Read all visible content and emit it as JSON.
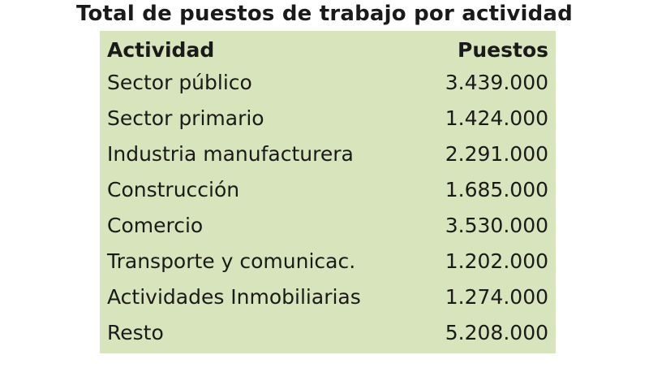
{
  "title": "Total de puestos de trabajo por actividad",
  "table": {
    "headers": {
      "activity": "Actividad",
      "jobs": "Puestos"
    },
    "rows": [
      {
        "activity": "Sector público",
        "jobs": "3.439.000"
      },
      {
        "activity": "Sector primario",
        "jobs": "1.424.000"
      },
      {
        "activity": "Industria manufacturera",
        "jobs": "2.291.000"
      },
      {
        "activity": "Construcción",
        "jobs": "1.685.000"
      },
      {
        "activity": "Comercio",
        "jobs": "3.530.000"
      },
      {
        "activity": "Transporte y comunicac.",
        "jobs": "1.202.000"
      },
      {
        "activity": "Actividades Inmobiliarias",
        "jobs": "1.274.000"
      },
      {
        "activity": "Resto",
        "jobs": "5.208.000"
      }
    ]
  },
  "colors": {
    "table_background": "#d8e4bc",
    "text": "#1a1a1a"
  }
}
